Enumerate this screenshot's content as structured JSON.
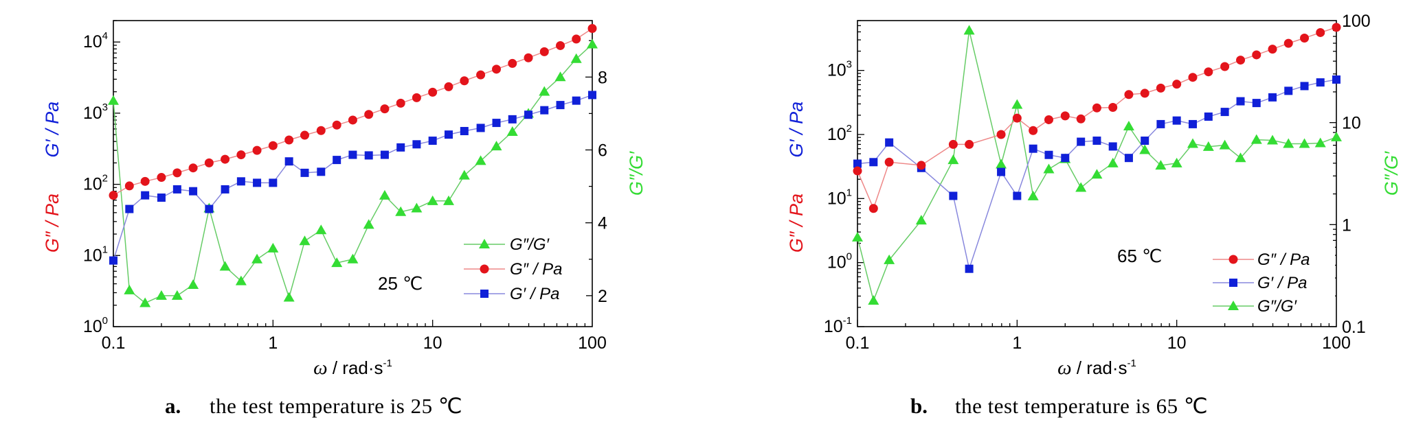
{
  "colors": {
    "G2": "#e3141b",
    "G1": "#1020d8",
    "ratio": "#34dc34",
    "ratio_line": "#66cc66",
    "G2_line": "#e88",
    "G1_line": "#8888dd"
  },
  "chart_data": [
    {
      "type": "line",
      "panel": "a",
      "caption_letter": "a.",
      "caption_text": "the test temperature is 25 ℃",
      "annotation": "25 ℃",
      "xlabel_omega": "ω",
      "xlabel_unit": " / rad·s",
      "xlabel_exp": "-1",
      "ylabel_left_g2": "G″ / Pa",
      "ylabel_left_g1": "G′ / Pa",
      "ylabel_right": "G″/G′",
      "x_scale": "log",
      "xlim": [
        0.1,
        100
      ],
      "x_ticks": [
        {
          "v": 0.1,
          "l": "0.1"
        },
        {
          "v": 1,
          "l": "1"
        },
        {
          "v": 10,
          "l": "10"
        },
        {
          "v": 100,
          "l": "100"
        }
      ],
      "y_left_scale": "log",
      "y_left_lim": [
        1,
        20000
      ],
      "y_left_ticks": [
        {
          "v": 1,
          "b": "10",
          "e": "0"
        },
        {
          "v": 10,
          "b": "10",
          "e": "1"
        },
        {
          "v": 100,
          "b": "10",
          "e": "2"
        },
        {
          "v": 1000,
          "b": "10",
          "e": "3"
        },
        {
          "v": 10000,
          "b": "10",
          "e": "4"
        }
      ],
      "y_right_scale": "linear",
      "y_right_lim": [
        1.15,
        9.55
      ],
      "y_right_ticks": [
        {
          "v": 2,
          "l": "2"
        },
        {
          "v": 4,
          "l": "4"
        },
        {
          "v": 6,
          "l": "6"
        },
        {
          "v": 8,
          "l": "8"
        }
      ],
      "legend": [
        {
          "key": "ratio",
          "label": "G″/G′"
        },
        {
          "key": "G2",
          "label": "G″ / Pa"
        },
        {
          "key": "G1",
          "label": "G′ / Pa"
        }
      ],
      "x": [
        0.1,
        0.126,
        0.158,
        0.2,
        0.251,
        0.316,
        0.398,
        0.501,
        0.631,
        0.794,
        1.0,
        1.26,
        1.58,
        2.0,
        2.51,
        3.16,
        3.98,
        5.01,
        6.31,
        7.94,
        10.0,
        12.6,
        15.8,
        20.0,
        25.1,
        31.6,
        39.8,
        50.1,
        63.1,
        79.4,
        100
      ],
      "series": [
        {
          "key": "G2",
          "axis": "left",
          "marker": "circle",
          "name": "G″ / Pa",
          "values": [
            70,
            95,
            110,
            125,
            145,
            170,
            200,
            225,
            260,
            300,
            350,
            420,
            490,
            570,
            680,
            800,
            960,
            1150,
            1380,
            1650,
            1970,
            2350,
            2850,
            3450,
            4150,
            5000,
            6000,
            7300,
            8900,
            11000,
            15500
          ]
        },
        {
          "key": "G1",
          "axis": "left",
          "marker": "square",
          "name": "G′ / Pa",
          "values": [
            8.5,
            45,
            70,
            65,
            85,
            80,
            45,
            85,
            110,
            105,
            105,
            210,
            145,
            150,
            220,
            260,
            255,
            260,
            330,
            365,
            410,
            500,
            560,
            620,
            730,
            820,
            950,
            1100,
            1300,
            1500,
            1800
          ]
        },
        {
          "key": "ratio",
          "axis": "right",
          "marker": "triangle",
          "name": "G″/G′",
          "values": [
            7.35,
            2.15,
            1.8,
            2.0,
            2.0,
            2.3,
            4.4,
            2.8,
            2.4,
            3.0,
            3.3,
            1.95,
            3.5,
            3.8,
            2.9,
            3.0,
            3.95,
            4.75,
            4.3,
            4.4,
            4.6,
            4.6,
            5.3,
            5.7,
            6.1,
            6.5,
            7.0,
            7.6,
            8.0,
            8.5,
            8.9
          ]
        }
      ]
    },
    {
      "type": "line",
      "panel": "b",
      "caption_letter": "b.",
      "caption_text": "the test temperature is 65 ℃",
      "annotation": "65 ℃",
      "xlabel_omega": "ω",
      "xlabel_unit": " / rad·s",
      "xlabel_exp": "-1",
      "ylabel_left_g2": "G″ / Pa",
      "ylabel_left_g1": "G′ / Pa",
      "ylabel_right": "G″/G′",
      "x_scale": "log",
      "xlim": [
        0.1,
        100
      ],
      "x_ticks": [
        {
          "v": 0.1,
          "l": "0.1"
        },
        {
          "v": 1,
          "l": "1"
        },
        {
          "v": 10,
          "l": "10"
        },
        {
          "v": 100,
          "l": "100"
        }
      ],
      "y_left_scale": "log",
      "y_left_lim": [
        0.1,
        6000
      ],
      "y_left_ticks": [
        {
          "v": 0.1,
          "b": "10",
          "e": "-1"
        },
        {
          "v": 1,
          "b": "10",
          "e": "0"
        },
        {
          "v": 10,
          "b": "10",
          "e": "1"
        },
        {
          "v": 100,
          "b": "10",
          "e": "2"
        },
        {
          "v": 1000,
          "b": "10",
          "e": "3"
        }
      ],
      "y_right_scale": "log",
      "y_right_lim": [
        0.1,
        100
      ],
      "y_right_ticks": [
        {
          "v": 0.1,
          "l": "0.1"
        },
        {
          "v": 1,
          "l": "1"
        },
        {
          "v": 10,
          "l": "10"
        },
        {
          "v": 100,
          "l": "100"
        }
      ],
      "legend": [
        {
          "key": "G2",
          "label": "G″ / Pa"
        },
        {
          "key": "G1",
          "label": "G′ / Pa"
        },
        {
          "key": "ratio",
          "label": "G″/G′"
        }
      ],
      "x": [
        0.1,
        0.126,
        0.158,
        0.251,
        0.398,
        0.501,
        0.794,
        1.0,
        1.26,
        1.58,
        2.0,
        2.51,
        3.16,
        3.98,
        5.01,
        6.31,
        7.94,
        10.0,
        12.6,
        15.8,
        20.0,
        25.1,
        31.6,
        39.8,
        50.1,
        63.1,
        79.4,
        100
      ],
      "series": [
        {
          "key": "G2",
          "axis": "left",
          "marker": "circle",
          "name": "G″ / Pa",
          "values": [
            27,
            7,
            37,
            33,
            70,
            70,
            100,
            180,
            115,
            170,
            195,
            175,
            260,
            265,
            420,
            440,
            530,
            610,
            780,
            950,
            1150,
            1450,
            1750,
            2150,
            2650,
            3200,
            3900,
            4700
          ]
        },
        {
          "key": "G1",
          "axis": "left",
          "marker": "square",
          "name": "G′ / Pa",
          "values": [
            35,
            37,
            75,
            30,
            11,
            0.8,
            26,
            11,
            60,
            48,
            43,
            77,
            80,
            65,
            43,
            80,
            145,
            165,
            145,
            190,
            225,
            330,
            310,
            380,
            480,
            570,
            650,
            720
          ]
        },
        {
          "key": "ratio",
          "axis": "right",
          "marker": "triangle",
          "name": "G″/G′",
          "values": [
            0.75,
            0.18,
            0.45,
            1.1,
            4.3,
            80,
            3.9,
            15,
            1.9,
            3.5,
            4.4,
            2.3,
            3.1,
            4.0,
            9.2,
            5.4,
            3.8,
            4.0,
            6.2,
            5.8,
            6.0,
            4.5,
            6.8,
            6.7,
            6.2,
            6.2,
            6.3,
            7.2
          ]
        }
      ]
    }
  ]
}
